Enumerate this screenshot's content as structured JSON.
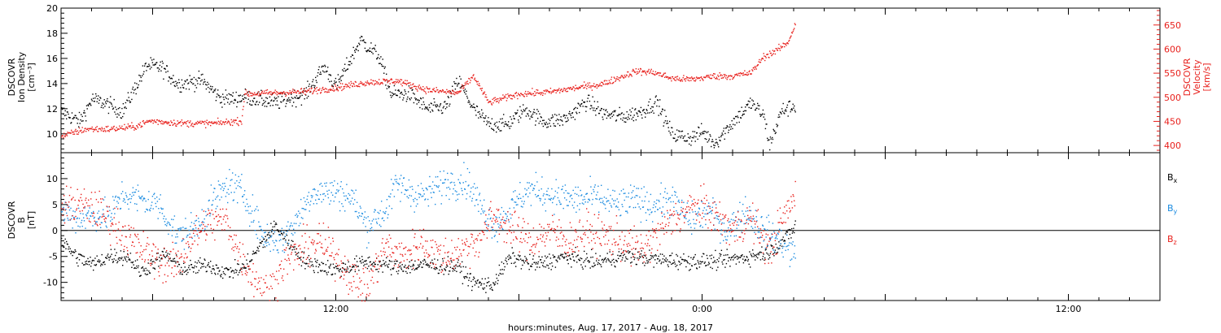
{
  "chart_data": [
    {
      "type": "scatter",
      "panel": "plasma",
      "left_axis": {
        "label_lines": [
          "DSCOVR",
          "Ion Density",
          "[cm⁻³]"
        ],
        "ylim": [
          8.5,
          20
        ],
        "ticks": [
          10,
          12,
          14,
          16,
          18,
          20
        ],
        "color": "#000000"
      },
      "right_axis": {
        "label_lines": [
          "DSCOVR",
          "Velocity",
          "[km/s]"
        ],
        "ylim": [
          385,
          685
        ],
        "ticks": [
          400,
          450,
          500,
          550,
          600,
          650
        ],
        "color": "#e8201c"
      },
      "series": [
        {
          "color": "#000000",
          "axis": "left",
          "t_range": [
            3.0,
            27.05
          ],
          "step": 0.02,
          "keypoints": [
            [
              3.0,
              11.8
            ],
            [
              3.6,
              11.0
            ],
            [
              4.0,
              12.8
            ],
            [
              4.5,
              12.4
            ],
            [
              5.0,
              11.8
            ],
            [
              5.8,
              15.5
            ],
            [
              6.3,
              15.3
            ],
            [
              6.8,
              14.0
            ],
            [
              7.6,
              14.3
            ],
            [
              8.2,
              12.9
            ],
            [
              8.6,
              12.8
            ],
            [
              9.0,
              13.0
            ],
            [
              10.0,
              12.5
            ],
            [
              11.0,
              13.2
            ],
            [
              11.6,
              15.4
            ],
            [
              12.0,
              13.8
            ],
            [
              12.8,
              17.5
            ],
            [
              13.4,
              16.2
            ],
            [
              13.8,
              13.2
            ],
            [
              14.4,
              13.2
            ],
            [
              15.0,
              12.0
            ],
            [
              15.6,
              12.2
            ],
            [
              16.0,
              14.3
            ],
            [
              16.5,
              12.0
            ],
            [
              17.0,
              10.8
            ],
            [
              17.6,
              10.8
            ],
            [
              18.2,
              12.0
            ],
            [
              18.8,
              11.0
            ],
            [
              19.5,
              11.2
            ],
            [
              20.2,
              12.6
            ],
            [
              20.8,
              11.6
            ],
            [
              21.4,
              11.4
            ],
            [
              22.0,
              11.8
            ],
            [
              22.5,
              12.6
            ],
            [
              23.0,
              10.0
            ],
            [
              23.6,
              9.7
            ],
            [
              24.0,
              10.2
            ],
            [
              24.4,
              9.3
            ],
            [
              25.0,
              11.0
            ],
            [
              25.6,
              12.5
            ],
            [
              26.0,
              11.5
            ],
            [
              26.2,
              9.2
            ],
            [
              26.6,
              11.9
            ],
            [
              27.05,
              12.3
            ]
          ],
          "noise": 0.45
        },
        {
          "color": "#e8201c",
          "axis": "right",
          "t_range": [
            3.0,
            27.05
          ],
          "step": 0.02,
          "keypoints": [
            [
              3.0,
              420
            ],
            [
              3.8,
              435
            ],
            [
              4.6,
              435
            ],
            [
              5.4,
              440
            ],
            [
              5.9,
              452
            ],
            [
              7.0,
              447
            ],
            [
              8.0,
              447
            ],
            [
              8.9,
              452
            ],
            [
              9.0,
              508
            ],
            [
              10.0,
              510
            ],
            [
              11.0,
              513
            ],
            [
              12.0,
              521
            ],
            [
              13.0,
              532
            ],
            [
              14.0,
              535
            ],
            [
              15.0,
              516
            ],
            [
              16.0,
              510
            ],
            [
              16.5,
              545
            ],
            [
              17.0,
              490
            ],
            [
              18.0,
              508
            ],
            [
              19.0,
              512
            ],
            [
              20.0,
              522
            ],
            [
              20.7,
              528
            ],
            [
              21.2,
              540
            ],
            [
              21.8,
              555
            ],
            [
              22.4,
              553
            ],
            [
              23.0,
              540
            ],
            [
              23.6,
              538
            ],
            [
              24.4,
              545
            ],
            [
              25.0,
              545
            ],
            [
              25.6,
              552
            ],
            [
              26.0,
              585
            ],
            [
              26.4,
              597
            ],
            [
              26.8,
              615
            ],
            [
              27.05,
              655
            ]
          ],
          "noise": 5
        }
      ]
    },
    {
      "type": "scatter",
      "panel": "magnetic_field",
      "left_axis": {
        "label_lines": [
          "DSCOVR",
          "B",
          "[nT]"
        ],
        "ylim": [
          -13.5,
          15
        ],
        "ticks": [
          -10,
          -5,
          0,
          5,
          10
        ],
        "color": "#000000"
      },
      "zero_line": true,
      "series": [
        {
          "name": "Bx",
          "color": "#000000",
          "t_range": [
            3.0,
            27.05
          ],
          "step": 0.02,
          "keypoints": [
            [
              3.0,
              -2.0
            ],
            [
              3.5,
              -5.0
            ],
            [
              4.0,
              -6.5
            ],
            [
              4.6,
              -4.8
            ],
            [
              5.2,
              -5.0
            ],
            [
              5.6,
              -8.0
            ],
            [
              6.4,
              -4.5
            ],
            [
              7.0,
              -7.5
            ],
            [
              7.8,
              -6.5
            ],
            [
              8.4,
              -8.0
            ],
            [
              9.0,
              -7.0
            ],
            [
              9.5,
              -3.0
            ],
            [
              10.0,
              1.0
            ],
            [
              10.5,
              -2.5
            ],
            [
              11.0,
              -6.0
            ],
            [
              12.0,
              -7.5
            ],
            [
              13.0,
              -6.0
            ],
            [
              14.0,
              -7.0
            ],
            [
              15.0,
              -6.5
            ],
            [
              16.0,
              -7.0
            ],
            [
              16.5,
              -10.0
            ],
            [
              17.1,
              -10.5
            ],
            [
              17.7,
              -5.0
            ],
            [
              18.5,
              -6.5
            ],
            [
              19.5,
              -5.0
            ],
            [
              20.5,
              -6.0
            ],
            [
              21.5,
              -4.8
            ],
            [
              22.5,
              -5.5
            ],
            [
              23.5,
              -5.8
            ],
            [
              24.5,
              -5.8
            ],
            [
              25.5,
              -5.0
            ],
            [
              26.2,
              -4.0
            ],
            [
              26.8,
              -1.0
            ],
            [
              27.05,
              1.0
            ]
          ],
          "noise": 1.1
        },
        {
          "name": "By",
          "color": "#1a8be0",
          "t_range": [
            3.0,
            27.05
          ],
          "step": 0.02,
          "keypoints": [
            [
              3.0,
              4.0
            ],
            [
              3.5,
              2.5
            ],
            [
              4.0,
              3.0
            ],
            [
              4.6,
              3.0
            ],
            [
              5.0,
              7.0
            ],
            [
              5.6,
              6.0
            ],
            [
              6.2,
              5.0
            ],
            [
              6.8,
              -1.0
            ],
            [
              7.4,
              0.5
            ],
            [
              8.0,
              6.0
            ],
            [
              8.5,
              9.0
            ],
            [
              9.0,
              7.0
            ],
            [
              9.6,
              -1.0
            ],
            [
              10.2,
              -2.0
            ],
            [
              10.8,
              3.0
            ],
            [
              11.2,
              7.5
            ],
            [
              12.0,
              7.5
            ],
            [
              12.5,
              6.5
            ],
            [
              13.0,
              1.0
            ],
            [
              13.6,
              4.0
            ],
            [
              14.0,
              9.0
            ],
            [
              14.6,
              7.0
            ],
            [
              15.0,
              7.0
            ],
            [
              15.6,
              9.5
            ],
            [
              16.3,
              9.5
            ],
            [
              16.8,
              4.0
            ],
            [
              17.2,
              1.0
            ],
            [
              17.8,
              5.0
            ],
            [
              18.3,
              8.0
            ],
            [
              19.0,
              7.0
            ],
            [
              19.8,
              6.0
            ],
            [
              20.5,
              6.5
            ],
            [
              21.2,
              5.0
            ],
            [
              21.8,
              6.0
            ],
            [
              22.4,
              5.0
            ],
            [
              23.0,
              6.0
            ],
            [
              23.6,
              2.0
            ],
            [
              24.2,
              4.0
            ],
            [
              24.8,
              0.0
            ],
            [
              25.4,
              4.0
            ],
            [
              26.0,
              0.0
            ],
            [
              26.6,
              -2.0
            ],
            [
              27.05,
              -5.0
            ]
          ],
          "noise": 2.2
        },
        {
          "name": "Bz",
          "color": "#e8201c",
          "t_range": [
            3.0,
            27.05
          ],
          "step": 0.02,
          "keypoints": [
            [
              3.0,
              5.0
            ],
            [
              3.6,
              5.0
            ],
            [
              4.2,
              4.0
            ],
            [
              4.8,
              1.0
            ],
            [
              5.3,
              -2.0
            ],
            [
              5.7,
              -4.0
            ],
            [
              6.3,
              -6.0
            ],
            [
              6.8,
              -6.5
            ],
            [
              7.2,
              -2.0
            ],
            [
              7.8,
              1.5
            ],
            [
              8.4,
              2.0
            ],
            [
              8.8,
              -4.0
            ],
            [
              9.3,
              -9.0
            ],
            [
              9.8,
              -12.0
            ],
            [
              10.3,
              -6.0
            ],
            [
              10.8,
              -4.0
            ],
            [
              11.4,
              -2.0
            ],
            [
              12.0,
              -5.0
            ],
            [
              12.6,
              -9.5
            ],
            [
              13.0,
              -11.0
            ],
            [
              13.6,
              -3.0
            ],
            [
              14.2,
              -5.0
            ],
            [
              14.8,
              -2.0
            ],
            [
              15.4,
              -5.0
            ],
            [
              16.0,
              -4.0
            ],
            [
              16.6,
              -2.0
            ],
            [
              17.2,
              3.0
            ],
            [
              17.8,
              0.0
            ],
            [
              18.4,
              -2.0
            ],
            [
              19.0,
              0.0
            ],
            [
              19.6,
              -2.0
            ],
            [
              20.2,
              0.0
            ],
            [
              20.8,
              -1.0
            ],
            [
              21.4,
              -2.0
            ],
            [
              22.0,
              -4.0
            ],
            [
              22.6,
              0.0
            ],
            [
              23.2,
              3.0
            ],
            [
              23.8,
              5.0
            ],
            [
              24.4,
              3.0
            ],
            [
              25.0,
              0.0
            ],
            [
              25.6,
              2.5
            ],
            [
              26.2,
              -4.0
            ],
            [
              26.6,
              2.0
            ],
            [
              27.05,
              6.5
            ]
          ],
          "noise": 2.6
        }
      ],
      "legend": {
        "placement": "right",
        "entries": [
          {
            "base": "B",
            "sub": "x",
            "color": "#000000"
          },
          {
            "base": "B",
            "sub": "y",
            "color": "#1a8be0"
          },
          {
            "base": "B",
            "sub": "z",
            "color": "#e8201c"
          }
        ]
      }
    }
  ],
  "time_axis": {
    "xlim_hours": [
      3.0,
      39.0
    ],
    "major_ticks": [
      {
        "t": 12.0,
        "label": "12:00"
      },
      {
        "t": 24.0,
        "label": "0:00"
      },
      {
        "t": 36.0,
        "label": "12:00"
      }
    ],
    "minor_step_hours": 1,
    "footer": "hours:minutes, Aug. 17, 2017 - Aug. 18, 2017"
  }
}
